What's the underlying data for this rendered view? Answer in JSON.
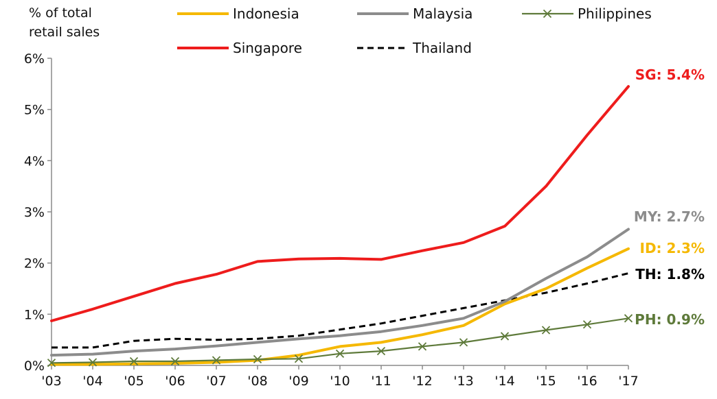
{
  "chart_data": {
    "type": "line",
    "ylabel": "% of total retail sales",
    "y_title_lines": [
      "% of total",
      "retail sales"
    ],
    "ylim": [
      0,
      6
    ],
    "y_ticks": [
      "0%",
      "1%",
      "2%",
      "3%",
      "4%",
      "5%",
      "6%"
    ],
    "categories": [
      "'03",
      "'04",
      "'05",
      "'06",
      "'07",
      "'08",
      "'09",
      "'10",
      "'11",
      "'12",
      "'13",
      "'14",
      "'15",
      "'16",
      "'17"
    ],
    "grid": false,
    "legend_position": "top",
    "series": [
      {
        "name": "Indonesia",
        "color": "#F5B800",
        "style": "solid",
        "marker": "none",
        "end_label": "ID: 2.3%",
        "values": [
          0.02,
          0.02,
          0.03,
          0.04,
          0.06,
          0.1,
          0.2,
          0.37,
          0.45,
          0.6,
          0.78,
          1.2,
          1.5,
          1.9,
          2.28
        ]
      },
      {
        "name": "Malaysia",
        "color": "#8C8C8C",
        "style": "solid",
        "marker": "none",
        "end_label": "MY: 2.7%",
        "values": [
          0.2,
          0.22,
          0.28,
          0.32,
          0.38,
          0.45,
          0.52,
          0.58,
          0.66,
          0.78,
          0.92,
          1.25,
          1.7,
          2.12,
          2.66
        ]
      },
      {
        "name": "Philippines",
        "color": "#5E7A3A",
        "style": "solid",
        "marker": "x",
        "end_label": "PH: 0.9%",
        "values": [
          0.05,
          0.06,
          0.08,
          0.08,
          0.1,
          0.12,
          0.13,
          0.23,
          0.28,
          0.37,
          0.45,
          0.57,
          0.69,
          0.8,
          0.92
        ]
      },
      {
        "name": "Singapore",
        "color": "#EE1C1C",
        "style": "solid",
        "marker": "none",
        "end_label": "SG: 5.4%",
        "values": [
          0.87,
          1.1,
          1.35,
          1.6,
          1.78,
          2.03,
          2.08,
          2.09,
          2.07,
          2.24,
          2.4,
          2.72,
          3.5,
          4.5,
          5.45
        ]
      },
      {
        "name": "Thailand",
        "color": "#000000",
        "style": "dashed",
        "marker": "none",
        "end_label": "TH: 1.8%",
        "values": [
          0.35,
          0.35,
          0.48,
          0.52,
          0.5,
          0.52,
          0.58,
          0.7,
          0.82,
          0.97,
          1.12,
          1.27,
          1.42,
          1.6,
          1.8
        ]
      }
    ]
  }
}
